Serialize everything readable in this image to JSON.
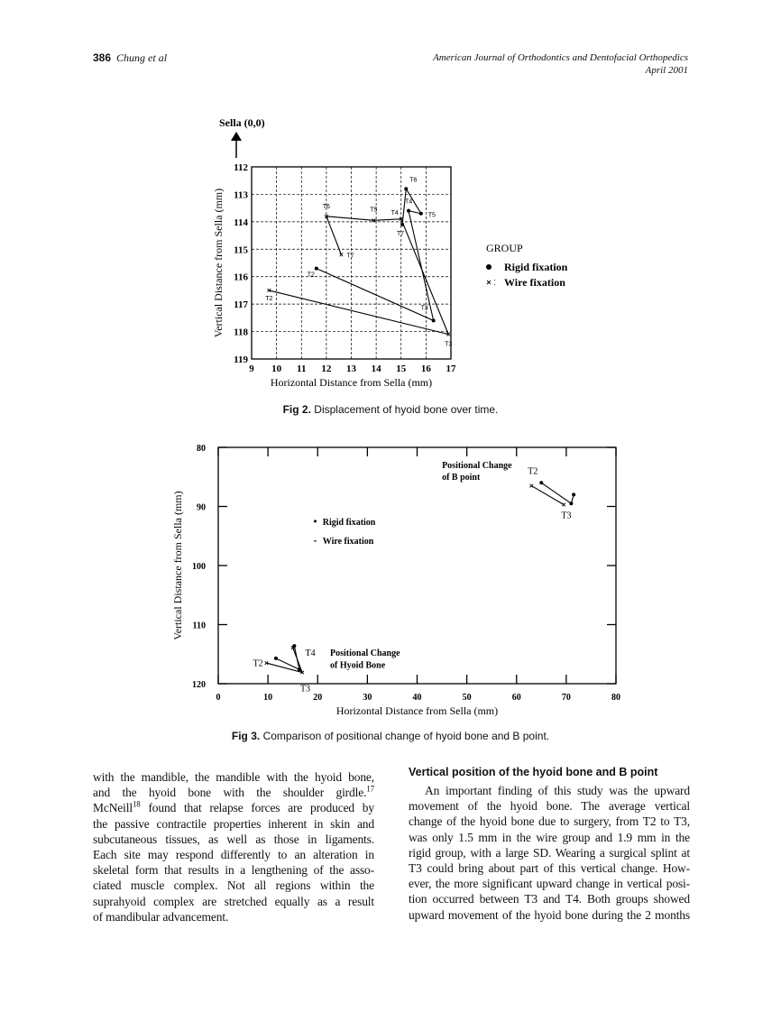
{
  "header": {
    "page_number": "386",
    "authors": "Chung et al",
    "journal": "American Journal of Orthodontics and Dentofacial Orthopedics",
    "date": "April 2001"
  },
  "fig2": {
    "caption_label": "Fig 2.",
    "caption_text": "Displacement of hyoid bone over time."
  },
  "fig3": {
    "caption_label": "Fig 3.",
    "caption_text": "Comparison of positional change of hyoid bone and B point."
  },
  "chart_data": [
    {
      "type": "line",
      "title": "",
      "origin_label": "Sella (0,0)",
      "xlabel": "Horizontal Distance from Sella (mm)",
      "ylabel": "Vertical Distance from Sella (mm)",
      "xlim": [
        9,
        17
      ],
      "ylim": [
        112,
        119
      ],
      "y_inverted": true,
      "grid": true,
      "xticks": [
        9,
        10,
        11,
        12,
        13,
        14,
        15,
        16,
        17
      ],
      "yticks": [
        112,
        113,
        114,
        115,
        116,
        117,
        118,
        119
      ],
      "legend": {
        "title": "GROUP",
        "position": "right",
        "entries": [
          "Rigid fixation",
          "Wire fixation"
        ]
      },
      "series": [
        {
          "name": "Rigid fixation",
          "marker": "dot",
          "points": [
            {
              "label": "T2",
              "x": 11.6,
              "y": 115.7
            },
            {
              "label": "T3",
              "x": 16.3,
              "y": 117.6
            },
            {
              "label": "T4",
              "x": 15.3,
              "y": 113.6
            },
            {
              "label": "T5",
              "x": 15.8,
              "y": 113.7
            },
            {
              "label": "T6",
              "x": 15.2,
              "y": 112.8
            },
            {
              "label": "T7",
              "x": 15.05,
              "y": 114.1
            }
          ]
        },
        {
          "name": "Wire fixation",
          "marker": "cross",
          "points": [
            {
              "label": "T2",
              "x": 9.7,
              "y": 116.5
            },
            {
              "label": "T3",
              "x": 16.9,
              "y": 118.1
            },
            {
              "label": "T4",
              "x": 15.0,
              "y": 113.9
            },
            {
              "label": "T5",
              "x": 13.9,
              "y": 113.95
            },
            {
              "label": "T6",
              "x": 12.0,
              "y": 113.8
            },
            {
              "label": "T7",
              "x": 12.6,
              "y": 115.2
            }
          ]
        }
      ]
    },
    {
      "type": "line",
      "title": "",
      "xlabel": "Horizontal Distance from Sella (mm)",
      "ylabel": "Vertical Distance from Sella (mm)",
      "xlim": [
        0,
        80
      ],
      "ylim": [
        80,
        120
      ],
      "y_inverted": true,
      "grid": false,
      "xticks": [
        0,
        10,
        20,
        30,
        40,
        50,
        60,
        70,
        80
      ],
      "yticks": [
        80,
        90,
        100,
        110,
        120
      ],
      "legend": {
        "position": "upper-left",
        "entries": [
          "Rigid fixation",
          "Wire fixation"
        ]
      },
      "annotations": [
        "Positional Change of B point",
        "Positional Change of Hyoid Bone"
      ],
      "series": [
        {
          "name": "Rigid fixation",
          "group": "Hyoid Bone",
          "points": [
            {
              "label": "T2",
              "x": 11.6,
              "y": 115.7
            },
            {
              "label": "T3",
              "x": 16.3,
              "y": 117.6
            },
            {
              "label": "T4",
              "x": 15.3,
              "y": 113.6
            }
          ]
        },
        {
          "name": "Wire fixation",
          "group": "Hyoid Bone",
          "points": [
            {
              "label": "T2",
              "x": 9.7,
              "y": 116.5
            },
            {
              "label": "T3",
              "x": 16.9,
              "y": 118.1
            },
            {
              "label": "T4",
              "x": 15.0,
              "y": 113.9
            }
          ]
        },
        {
          "name": "Rigid fixation",
          "group": "B point",
          "points": [
            {
              "label": "T2",
              "x": 65,
              "y": 86
            },
            {
              "label": "T3",
              "x": 71,
              "y": 89.5
            },
            {
              "label": "T4",
              "x": 71.5,
              "y": 88
            }
          ]
        },
        {
          "name": "Wire fixation",
          "group": "B point",
          "points": [
            {
              "label": "T2",
              "x": 63,
              "y": 86.5
            },
            {
              "label": "T3",
              "x": 69.5,
              "y": 89.7
            }
          ]
        }
      ]
    }
  ],
  "body": {
    "left": [
      "with the mandible, the mandible with the hyoid bone,",
      "and the hyoid bone with the shoulder girdle.",
      "McNeill",
      "found that relapse forces are produced by",
      "the passive contractile properties inherent in skin and",
      "subcutaneous tissues, as well as those in ligaments.",
      "Each site may respond differently to an alteration in",
      "skeletal form that results in a lengthening of the asso-",
      "ciated muscle complex. Not all regions within the",
      "suprahyoid complex are stretched equally as a result",
      "of mandibular advancement."
    ],
    "ref17": "17",
    "ref18": "18",
    "section_heading": "Vertical position of the hyoid bone and B point",
    "right": [
      "An important finding of this study was the upward",
      "movement of the hyoid bone. The average vertical",
      "change of the hyoid bone due to surgery, from T2 to T3,",
      "was only 1.5 mm in the wire group and 1.9 mm in the",
      "rigid group, with a large SD. Wearing a surgical splint at",
      "T3 could bring about part of this vertical change. How-",
      "ever, the more significant upward change in vertical posi-",
      "tion occurred between T3 and T4. Both groups showed",
      "upward movement of the hyoid bone during the 2 months"
    ]
  }
}
